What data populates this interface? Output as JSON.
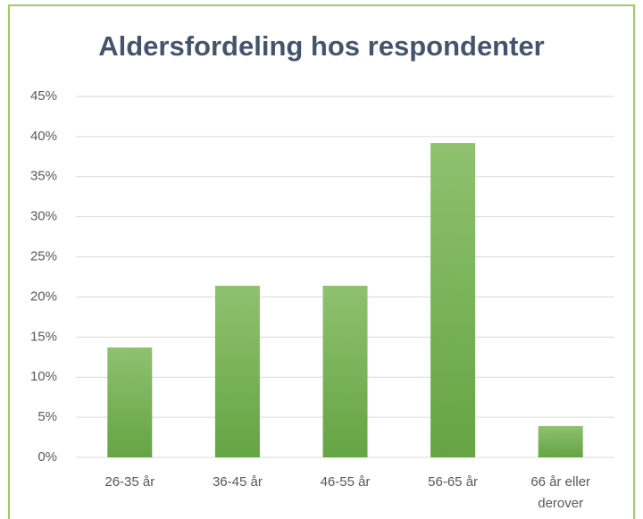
{
  "chart_data": {
    "type": "bar",
    "title": "Aldersfordeling hos respondenter",
    "categories": [
      "26-35 år",
      "36-45 år",
      "46-55 år",
      "56-65 år",
      "66 år eller derover"
    ],
    "values": [
      13.7,
      21.4,
      21.4,
      39.2,
      3.9
    ],
    "color": "#7ab55c",
    "ylim": [
      0,
      45
    ],
    "yticks": [
      {
        "value": 0,
        "label": "0%"
      },
      {
        "value": 5,
        "label": "5%"
      },
      {
        "value": 10,
        "label": "10%"
      },
      {
        "value": 15,
        "label": "15%"
      },
      {
        "value": 20,
        "label": "20%"
      },
      {
        "value": 25,
        "label": "25%"
      },
      {
        "value": 30,
        "label": "30%"
      },
      {
        "value": 35,
        "label": "35%"
      },
      {
        "value": 40,
        "label": "40%"
      },
      {
        "value": 45,
        "label": "45%"
      }
    ],
    "grid": true
  }
}
